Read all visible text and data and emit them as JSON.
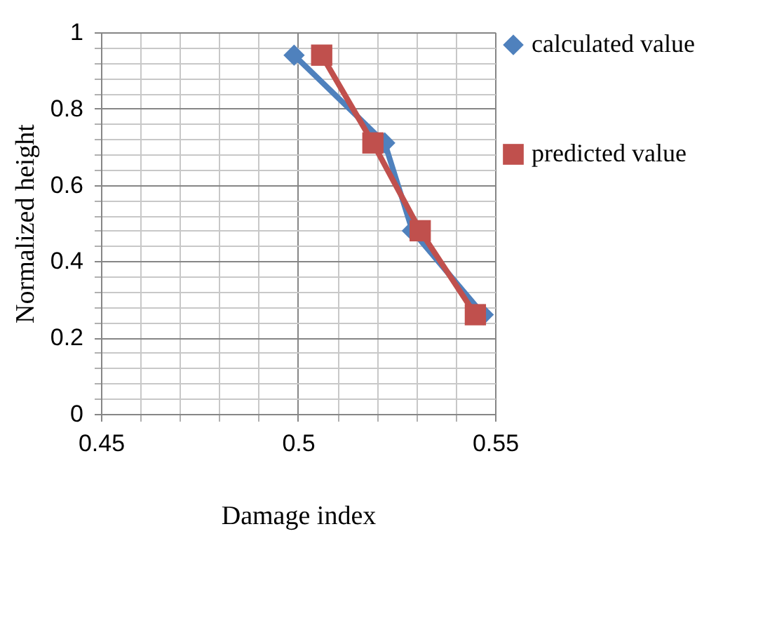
{
  "chart_data": {
    "type": "line",
    "xlabel": "Damage index",
    "ylabel": "Normalized height",
    "xlim": [
      0.45,
      0.55
    ],
    "xticks": [
      0.45,
      {
        "value": 0.46,
        "label": null
      },
      {
        "value": 0.47,
        "label": null
      },
      {
        "value": 0.48,
        "label": null
      },
      {
        "value": 0.49,
        "label": null
      },
      0.5,
      {
        "value": 0.51,
        "label": null
      },
      {
        "value": 0.52,
        "label": null
      },
      {
        "value": 0.53,
        "label": null
      },
      {
        "value": 0.54,
        "label": null
      },
      0.55
    ],
    "ylim": [
      0,
      1
    ],
    "yticks": [
      0,
      {
        "value": 0.04,
        "label": null
      },
      {
        "value": 0.08,
        "label": null
      },
      {
        "value": 0.12,
        "label": null
      },
      {
        "value": 0.16,
        "label": null
      },
      0.2,
      {
        "value": 0.24,
        "label": null
      },
      {
        "value": 0.28,
        "label": null
      },
      {
        "value": 0.32,
        "label": null
      },
      {
        "value": 0.36,
        "label": null
      },
      0.4,
      {
        "value": 0.44,
        "label": null
      },
      {
        "value": 0.48,
        "label": null
      },
      {
        "value": 0.52,
        "label": null
      },
      {
        "value": 0.56,
        "label": null
      },
      0.6,
      {
        "value": 0.64,
        "label": null
      },
      {
        "value": 0.68,
        "label": null
      },
      {
        "value": 0.72,
        "label": null
      },
      {
        "value": 0.76,
        "label": null
      },
      0.8,
      {
        "value": 0.84,
        "label": null
      },
      {
        "value": 0.88,
        "label": null
      },
      {
        "value": 0.92,
        "label": null
      },
      {
        "value": 0.96,
        "label": null
      },
      1
    ],
    "grid": true,
    "legend": "right",
    "line_style": "solid",
    "series": [
      {
        "name": "calculated value",
        "color": "#4f81bd",
        "marker": "diamond",
        "x": [
          0.499,
          0.522,
          0.529,
          0.547
        ],
        "values": [
          0.94,
          0.71,
          0.48,
          0.26
        ]
      },
      {
        "name": "predicted value",
        "color": "#c0504d",
        "marker": "square",
        "x": [
          0.506,
          0.519,
          0.531,
          0.545
        ],
        "values": [
          0.94,
          0.71,
          0.48,
          0.26
        ]
      }
    ]
  }
}
